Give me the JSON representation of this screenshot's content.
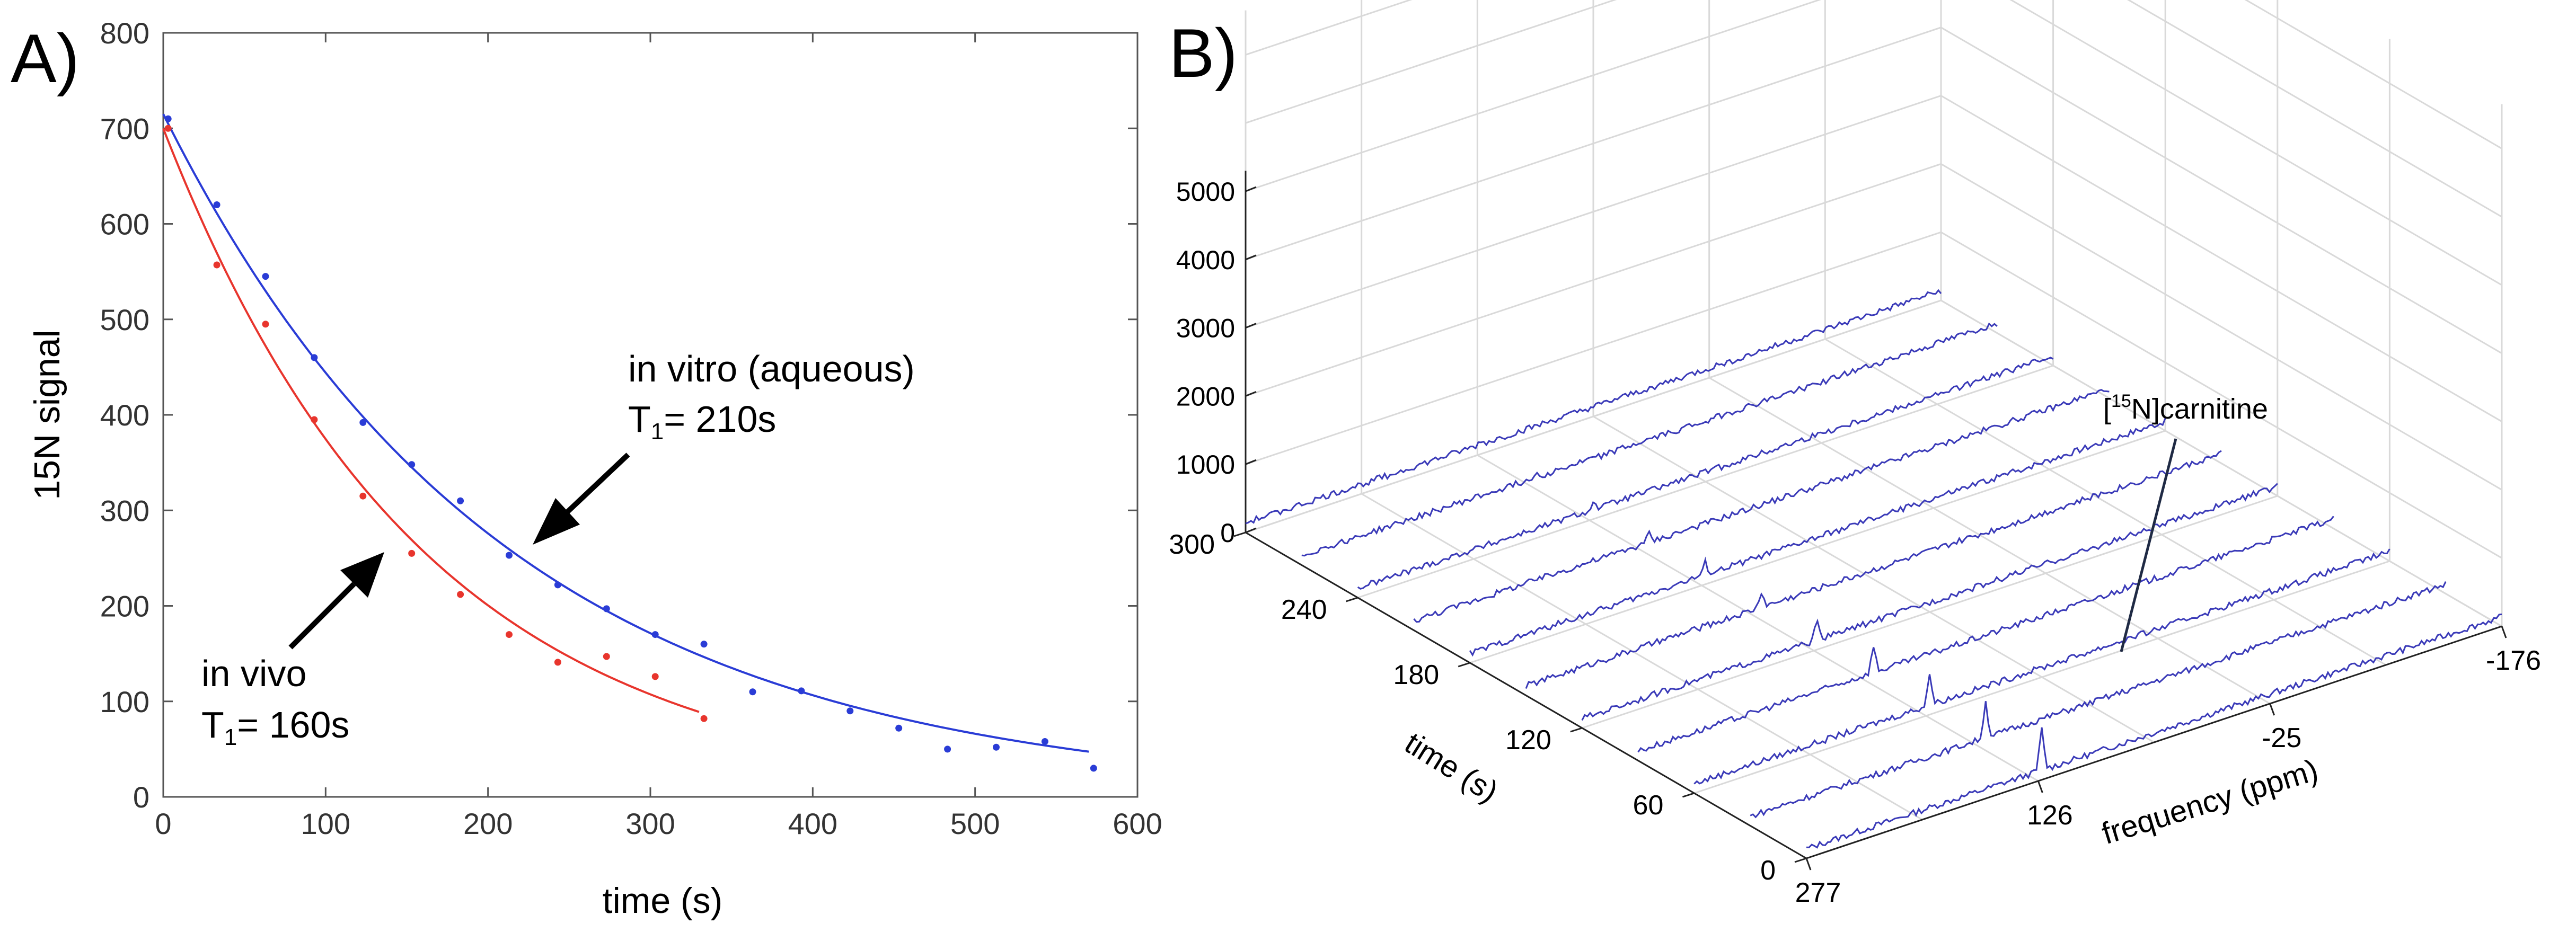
{
  "panels": {
    "a_label": "A)",
    "b_label": "B)"
  },
  "chart_data": [
    {
      "panel": "A",
      "type": "scatter",
      "xlabel": "time (s)",
      "ylabel": "15N signal",
      "xlim": [
        0,
        600
      ],
      "ylim": [
        0,
        800
      ],
      "xticks": [
        0,
        100,
        200,
        300,
        400,
        500,
        600
      ],
      "yticks": [
        0,
        100,
        200,
        300,
        400,
        500,
        600,
        700,
        800
      ],
      "grid": false,
      "colors": {
        "in_vitro": "#2a3cd6",
        "in_vivo": "#e8352d",
        "arrow": "#000000"
      },
      "series": [
        {
          "id": "in_vitro",
          "x": [
            3,
            33,
            63,
            93,
            123,
            153,
            183,
            213,
            243,
            273,
            303,
            333,
            363,
            393,
            423,
            453,
            483,
            513,
            543,
            573
          ],
          "values": [
            710,
            620,
            545,
            460,
            392,
            348,
            310,
            253,
            222,
            197,
            170,
            160,
            110,
            111,
            90,
            72,
            50,
            52,
            58,
            30
          ],
          "fit": {
            "a": 715,
            "t1": 210,
            "x_start": 0,
            "x_end": 570
          }
        },
        {
          "id": "in_vivo",
          "x": [
            3,
            33,
            63,
            93,
            123,
            153,
            183,
            213,
            243,
            273,
            303,
            333
          ],
          "values": [
            700,
            557,
            495,
            395,
            315,
            255,
            212,
            170,
            141,
            147,
            126,
            82
          ],
          "fit": {
            "a": 700,
            "t1": 160,
            "x_start": 0,
            "x_end": 330
          }
        }
      ],
      "annotations": [
        {
          "id": "vitro",
          "line1": "in vitro (aqueous)",
          "t_main": "T",
          "t_sub": "1",
          "t_rest": "= 210s"
        },
        {
          "id": "vivo",
          "line1": "in vivo",
          "t_main": "T",
          "t_sub": "1",
          "t_rest": "= 160s"
        }
      ]
    },
    {
      "panel": "B",
      "type": "line",
      "subtype": "waterfall-3d",
      "zticks": [
        "0",
        "1000",
        "2000",
        "3000",
        "4000",
        "5000"
      ],
      "time_ticks": [
        "0",
        "60",
        "120",
        "180",
        "240",
        "300"
      ],
      "freq_ticks": [
        "277",
        "126",
        "-25",
        "-176"
      ],
      "time_label": "time (s)",
      "freq_label": "frequency (ppm)",
      "peak_label": {
        "bracket_open": "[",
        "superscript": "15",
        "rest": "N]carnitine"
      },
      "trace_count": 11,
      "peak_amplitudes": [
        600,
        520,
        450,
        380,
        300,
        230,
        180,
        130,
        90,
        60,
        40
      ],
      "colors": {
        "trace": "#3a3ab8",
        "grid": "#d9d9d9",
        "axis": "#000000"
      }
    }
  ]
}
